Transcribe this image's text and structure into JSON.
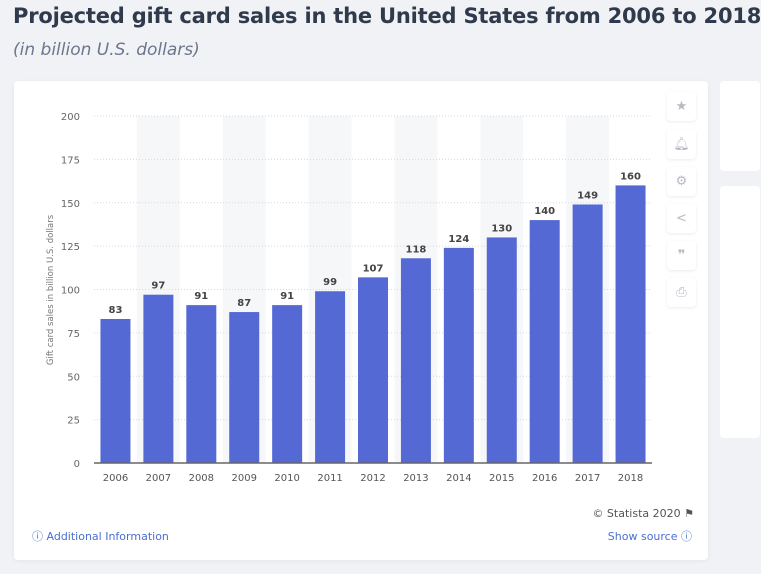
{
  "header": {
    "title": "Projected gift card sales in the United States from 2006 to 2018",
    "subtitle": "(in billion U.S. dollars)"
  },
  "chart_data": {
    "type": "bar",
    "categories": [
      "2006",
      "2007",
      "2008",
      "2009",
      "2010",
      "2011",
      "2012",
      "2013",
      "2014",
      "2015",
      "2016",
      "2017",
      "2018"
    ],
    "values": [
      83,
      97,
      91,
      87,
      91,
      99,
      107,
      118,
      124,
      130,
      140,
      149,
      160
    ],
    "ylabel": "Gift card sales in billion U.S. dollars",
    "ylim": [
      0,
      200
    ],
    "yticks": [
      0,
      25,
      50,
      75,
      100,
      125,
      150,
      175,
      200
    ],
    "grid": true,
    "bar_color": "#5469d4"
  },
  "footer": {
    "credit": "© Statista 2020",
    "additional_info": "Additional Information",
    "show_source": "Show source"
  },
  "tools": [
    "star-icon",
    "bell-icon",
    "gear-icon",
    "share-icon",
    "quote-icon",
    "print-icon"
  ]
}
